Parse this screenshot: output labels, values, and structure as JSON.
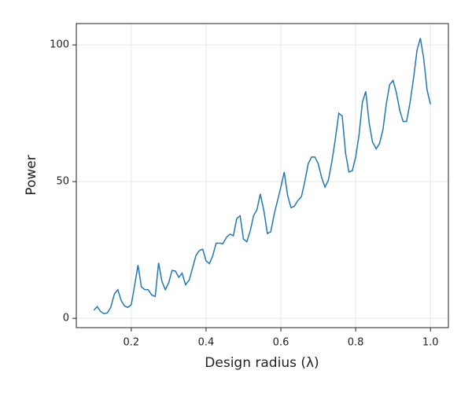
{
  "chart_data": {
    "type": "line",
    "xlabel": "Design radius (λ)",
    "ylabel": "Power",
    "x": [
      0.1,
      0.109,
      0.118,
      0.127,
      0.136,
      0.145,
      0.155,
      0.164,
      0.173,
      0.182,
      0.191,
      0.2,
      0.209,
      0.218,
      0.227,
      0.236,
      0.245,
      0.255,
      0.264,
      0.273,
      0.282,
      0.291,
      0.3,
      0.309,
      0.318,
      0.327,
      0.336,
      0.345,
      0.355,
      0.364,
      0.373,
      0.382,
      0.391,
      0.4,
      0.409,
      0.418,
      0.427,
      0.436,
      0.445,
      0.455,
      0.464,
      0.473,
      0.482,
      0.491,
      0.5,
      0.509,
      0.518,
      0.527,
      0.536,
      0.545,
      0.555,
      0.564,
      0.573,
      0.582,
      0.591,
      0.6,
      0.609,
      0.618,
      0.627,
      0.636,
      0.645,
      0.655,
      0.664,
      0.673,
      0.682,
      0.691,
      0.7,
      0.709,
      0.718,
      0.727,
      0.736,
      0.745,
      0.755,
      0.764,
      0.773,
      0.782,
      0.791,
      0.8,
      0.809,
      0.818,
      0.827,
      0.836,
      0.845,
      0.855,
      0.864,
      0.873,
      0.882,
      0.891,
      0.9,
      0.909,
      0.918,
      0.927,
      0.936,
      0.945,
      0.955,
      0.964,
      0.973,
      0.982,
      0.991,
      1.0
    ],
    "series": [
      {
        "color": "#2178b4",
        "values": [
          3,
          4.3,
          2.5,
          1.7,
          2,
          4,
          9,
          10.5,
          6.5,
          4.5,
          4,
          5,
          12,
          19.5,
          11.5,
          10.5,
          10.5,
          8.5,
          8,
          20.3,
          13.5,
          10.5,
          13,
          17.5,
          17.3,
          15,
          16.5,
          12.3,
          14,
          18.5,
          23,
          24.8,
          25.3,
          21,
          20,
          23,
          27.5,
          27.5,
          27.3,
          29.7,
          30.8,
          30.2,
          36.5,
          37.5,
          29,
          28,
          32,
          37.5,
          39.7,
          45.5,
          39,
          31,
          31.7,
          38,
          43,
          48,
          53.5,
          45,
          40.5,
          41,
          43,
          44.5,
          50,
          56.5,
          59,
          59,
          56.5,
          51.5,
          48,
          50.5,
          57,
          65,
          75,
          74,
          60.5,
          53.5,
          54,
          59,
          67,
          79,
          83,
          71.5,
          64.5,
          62,
          64,
          69,
          78.5,
          85.5,
          87,
          82.5,
          76,
          72,
          72,
          78.5,
          88,
          98,
          102.5,
          95,
          83.5,
          78.3
        ]
      }
    ],
    "xlim": [
      0.053,
      1.048
    ],
    "ylim": [
      -3.4,
      107.8
    ],
    "xticks": [
      0.2,
      0.4,
      0.6,
      0.8,
      {
        "value": 1,
        "label": "1.0"
      }
    ],
    "yticks": [
      0,
      50,
      100
    ],
    "grid": true
  }
}
